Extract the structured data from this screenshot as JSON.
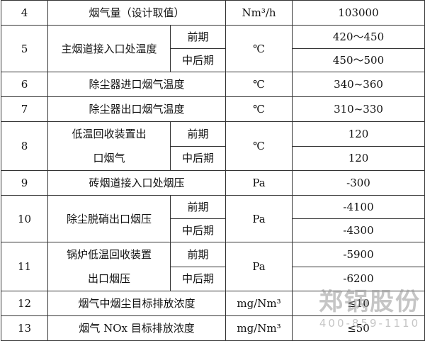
{
  "table": {
    "rows": [
      {
        "no": "4",
        "item": [
          "烟气量（设计取值）"
        ],
        "unit": "Nm³/h",
        "values": [
          "103000"
        ]
      },
      {
        "no": "5",
        "item": [
          "主烟道接入口处温度"
        ],
        "phases": [
          "前期",
          "中后期"
        ],
        "unit": "℃",
        "values": [
          "420～450",
          "450～500"
        ]
      },
      {
        "no": "6",
        "item": [
          "除尘器进口烟气温度"
        ],
        "unit": "℃",
        "values": [
          "340~360"
        ]
      },
      {
        "no": "7",
        "item": [
          "除尘器出口烟气温度"
        ],
        "unit": "℃",
        "values": [
          "310~330"
        ]
      },
      {
        "no": "8",
        "item": [
          "低温回收装置出",
          "口烟气"
        ],
        "phases": [
          "前期",
          "中后期"
        ],
        "unit": "℃",
        "values": [
          "120",
          "120"
        ]
      },
      {
        "no": "9",
        "item": [
          "砖烟道接入口处烟压"
        ],
        "unit": "Pa",
        "values": [
          "-300"
        ]
      },
      {
        "no": "10",
        "item": [
          "除尘脱硝出口烟压"
        ],
        "phases": [
          "前期",
          "中后期"
        ],
        "unit": "Pa",
        "values": [
          "-4100",
          "-4300"
        ]
      },
      {
        "no": "11",
        "item": [
          "锅炉低温回收装置",
          "出口烟压"
        ],
        "phases": [
          "前期",
          "中后期"
        ],
        "unit": "Pa",
        "values": [
          "-5900",
          "-6200"
        ]
      },
      {
        "no": "12",
        "item": [
          "烟气中烟尘目标排放浓度"
        ],
        "unit": "mg/Nm³",
        "values": [
          "≤10"
        ]
      },
      {
        "no": "13",
        "item": [
          "烟气 NOx 目标排放浓度"
        ],
        "unit": "mg/Nm³",
        "values": [
          "≤50"
        ]
      }
    ]
  },
  "watermark": {
    "brand": "郑锅股份",
    "phone": "400-859-1110"
  }
}
